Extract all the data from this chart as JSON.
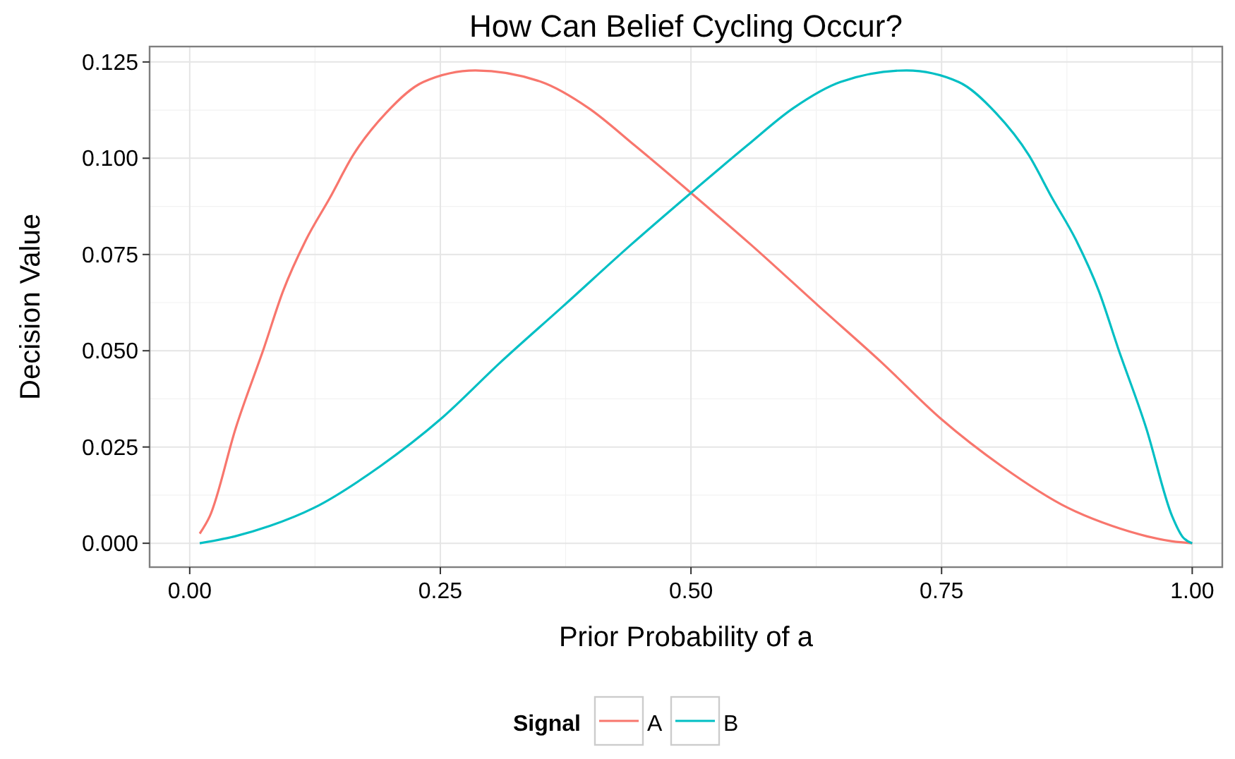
{
  "chart_data": {
    "type": "line",
    "title": "How Can Belief Cycling Occur?",
    "xlabel": "Prior Probability of a",
    "ylabel": "Decision Value",
    "legend_title": "Signal",
    "legend": "bottom",
    "grid": true,
    "xlim": [
      -0.04,
      1.03
    ],
    "xticks": [
      {
        "value": 0,
        "label": "0.00"
      },
      {
        "value": 0.25,
        "label": "0.25"
      },
      {
        "value": 0.5,
        "label": "0.50"
      },
      {
        "value": 0.75,
        "label": "0.75"
      },
      {
        "value": 1,
        "label": "1.00"
      }
    ],
    "ylim": [
      -0.0062,
      0.129
    ],
    "yticks": [
      {
        "value": 0,
        "label": "0.000"
      },
      {
        "value": 0.025,
        "label": "0.025"
      },
      {
        "value": 0.05,
        "label": "0.050"
      },
      {
        "value": 0.075,
        "label": "0.075"
      },
      {
        "value": 0.1,
        "label": "0.100"
      },
      {
        "value": 0.125,
        "label": "0.125"
      }
    ],
    "series": [
      {
        "name": "A",
        "color": "#f8766d",
        "x": [
          0.01,
          0.02,
          0.046,
          0.074,
          0.093,
          0.116,
          0.14,
          0.163,
          0.196,
          0.233,
          0.285,
          0.351,
          0.398,
          0.444,
          0.5,
          0.56,
          0.627,
          0.69,
          0.749,
          0.81,
          0.876,
          0.92,
          0.955,
          0.98,
          1.0
        ],
        "values": [
          0.0025,
          0.007,
          0.03,
          0.0507,
          0.0654,
          0.0788,
          0.0898,
          0.1008,
          0.1118,
          0.1198,
          0.1228,
          0.1198,
          0.113,
          0.1033,
          0.091,
          0.0775,
          0.0617,
          0.047,
          0.0324,
          0.02,
          0.0092,
          0.0045,
          0.0018,
          0.0005,
          0
        ]
      },
      {
        "name": "B",
        "color": "#00bfc4",
        "x": [
          0.01,
          0.045,
          0.08,
          0.124,
          0.19,
          0.251,
          0.31,
          0.373,
          0.44,
          0.5,
          0.556,
          0.602,
          0.649,
          0.715,
          0.767,
          0.804,
          0.837,
          0.86,
          0.884,
          0.907,
          0.926,
          0.954,
          0.98,
          0.99,
          1.0
        ],
        "values": [
          0,
          0.0018,
          0.0045,
          0.0092,
          0.02,
          0.0324,
          0.047,
          0.0617,
          0.0775,
          0.091,
          0.1033,
          0.113,
          0.1198,
          0.1228,
          0.1198,
          0.1118,
          0.1008,
          0.0898,
          0.0788,
          0.0654,
          0.0507,
          0.03,
          0.007,
          0.0018,
          0
        ]
      }
    ]
  }
}
